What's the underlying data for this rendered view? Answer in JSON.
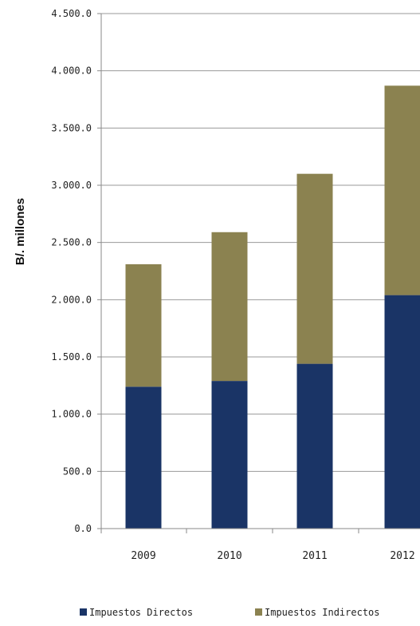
{
  "chart_data": {
    "type": "bar",
    "stacked": true,
    "categories": [
      "2009",
      "2010",
      "2011",
      "2012"
    ],
    "series": [
      {
        "name": "Impuestos Directos",
        "values": [
          1240,
          1290,
          1440,
          2040
        ],
        "color": "#1a3466"
      },
      {
        "name": "Impuestos Indirectos",
        "values": [
          1070,
          1300,
          1660,
          1830
        ],
        "color": "#8b8250"
      }
    ],
    "ylabel": "B/. millones",
    "ylim": [
      0,
      4500
    ],
    "yticks": [
      "0.0",
      "500.0",
      "1.000.0",
      "1.500.0",
      "2.000.0",
      "2.500.0",
      "3.000.0",
      "3.500.0",
      "4.000.0",
      "4.500.0"
    ],
    "grid": true,
    "legend_position": "bottom"
  }
}
